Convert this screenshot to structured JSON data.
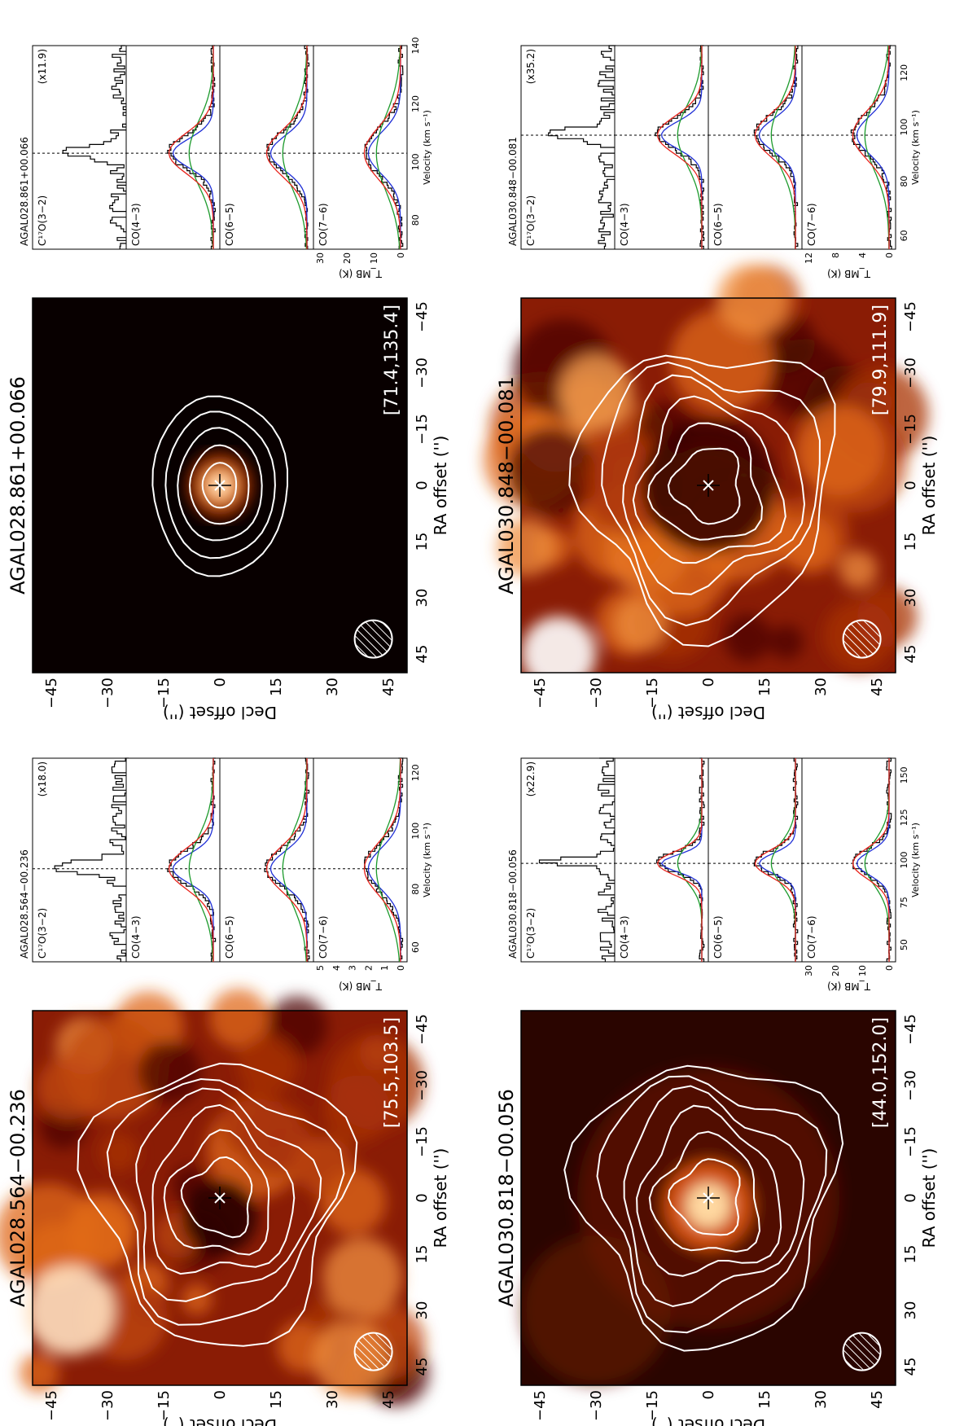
{
  "figure": {
    "orientation": "rotated-90-ccw",
    "rows": [
      {
        "panels": [
          {
            "source": "AGAL028.564−00.236",
            "vlsr_range": "[75.5,103.5]",
            "colormap": "hot",
            "map_style": "diffuse",
            "xlabel": "RA offset ('')",
            "ylabel": "Decl offset ('')",
            "ticks": [
              "45",
              "30",
              "15",
              "0",
              "−15",
              "−30",
              "−45"
            ],
            "spectra": {
              "source_label": "AGAL028.564−00.236",
              "scale_label": "(x18.0)",
              "lines": [
                "C¹⁷O(3−2)",
                "CO(4−3)",
                "CO(6−5)",
                "CO(7−6)"
              ],
              "velocity_ticks": [
                "60",
                "80",
                "100",
                "120"
              ],
              "velocity_range": [
                55,
                125
              ],
              "v0": 87,
              "y_ticks": [
                "0",
                "1",
                "2",
                "3",
                "4",
                "5"
              ],
              "ylabel": "T_MB (K)",
              "xlabel": "Velocity (km s⁻¹)"
            }
          },
          {
            "source": "AGAL028.861+00.066",
            "vlsr_range": "[71.4,135.4]",
            "colormap": "hot",
            "map_style": "compact",
            "xlabel": "RA offset ('')",
            "ylabel": "Decl offset ('')",
            "ticks": [
              "45",
              "30",
              "15",
              "0",
              "−15",
              "−30",
              "−45"
            ],
            "spectra": {
              "source_label": "AGAL028.861+00.066",
              "scale_label": "(x11.9)",
              "lines": [
                "C¹⁷O(3−2)",
                "CO(4−3)",
                "CO(6−5)",
                "CO(7−6)"
              ],
              "velocity_ticks": [
                "80",
                "100",
                "120",
                "140"
              ],
              "velocity_range": [
                70,
                140
              ],
              "v0": 103,
              "y_ticks": [
                "0",
                "10",
                "20",
                "30"
              ],
              "ylabel": "T_MB (K)",
              "xlabel": "Velocity (km s⁻¹)"
            }
          }
        ]
      },
      {
        "panels": [
          {
            "source": "AGAL030.818−00.056",
            "vlsr_range": "[44.0,152.0]",
            "colormap": "hot",
            "map_style": "core",
            "xlabel": "RA offset ('')",
            "ylabel": "Decl offset ('')",
            "ticks": [
              "45",
              "30",
              "15",
              "0",
              "−15",
              "−30",
              "−45"
            ],
            "spectra": {
              "source_label": "AGAL030.818−00.056",
              "scale_label": "(x22.9)",
              "lines": [
                "C¹⁷O(3−2)",
                "CO(4−3)",
                "CO(6−5)",
                "CO(7−6)"
              ],
              "velocity_ticks": [
                "50",
                "75",
                "100",
                "125",
                "150"
              ],
              "velocity_range": [
                40,
                160
              ],
              "v0": 98,
              "y_ticks": [
                "0",
                "10",
                "20",
                "30"
              ],
              "ylabel": "T_MB (K)",
              "xlabel": "Velocity (km s⁻¹)"
            }
          },
          {
            "source": "AGAL030.848−00.081",
            "vlsr_range": "[79.9,111.9]",
            "colormap": "hot",
            "map_style": "diffuse-ring",
            "xlabel": "RA offset ('')",
            "ylabel": "Decl offset ('')",
            "ticks": [
              "45",
              "30",
              "15",
              "0",
              "−15",
              "−30",
              "−45"
            ],
            "spectra": {
              "source_label": "AGAL030.848−00.081",
              "scale_label": "(x35.2)",
              "lines": [
                "C¹⁷O(3−2)",
                "CO(4−3)",
                "CO(6−5)",
                "CO(7−6)"
              ],
              "velocity_ticks": [
                "60",
                "80",
                "100",
                "120"
              ],
              "velocity_range": [
                55,
                130
              ],
              "v0": 97,
              "y_ticks": [
                "0",
                "4",
                "8",
                "12"
              ],
              "ylabel": "T_MB (K)",
              "xlabel": "Velocity (km s⁻¹)"
            }
          }
        ]
      }
    ],
    "line_colors": {
      "data": "#000000",
      "fit_total": "#e8231c",
      "fit_a": "#1f2fd6",
      "fit_b": "#1c9a2c",
      "contour": "#ffffff"
    }
  }
}
